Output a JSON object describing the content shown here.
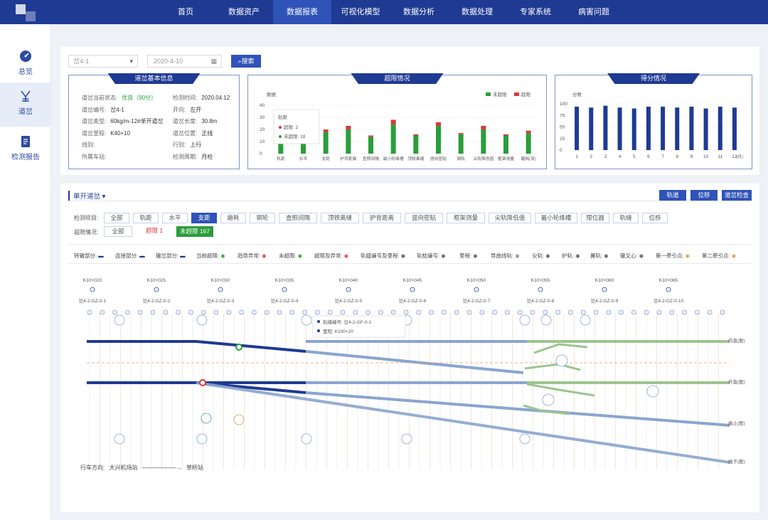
{
  "nav": {
    "items": [
      "首页",
      "数据资产",
      "数据报表",
      "可视化模型",
      "数据分析",
      "数据处理",
      "专家系统",
      "病害问题"
    ],
    "active_index": 2
  },
  "logo_caption": "首页",
  "sidebar": {
    "items": [
      {
        "label": "总览",
        "icon": "dashboard-gauge-icon"
      },
      {
        "label": "道岔",
        "icon": "turnout-icon"
      },
      {
        "label": "检测报告",
        "icon": "report-icon"
      }
    ],
    "active_index": 1
  },
  "filters": {
    "select_value": "岔4-1",
    "date_value": "2020-4-10",
    "search_label": "搜索"
  },
  "basic_info": {
    "title": "道岔基本信息",
    "rows": [
      {
        "k": "道岔当前状态:",
        "v": "优良（90分）"
      },
      {
        "k": "检测时间:",
        "v": "2020.04.12"
      },
      {
        "k": "道岔编号:",
        "v": "岔4-1"
      },
      {
        "k": "开向:",
        "v": "左开"
      },
      {
        "k": "道岔类型:",
        "v": "60kg/m-12#单开道岔"
      },
      {
        "k": "道岔长度:",
        "v": "30.8m"
      },
      {
        "k": "道岔里程:",
        "v": "K40+10"
      },
      {
        "k": "道岔位置:",
        "v": "正线"
      },
      {
        "k": "线别:",
        "v": ""
      },
      {
        "k": "行别:",
        "v": "上行"
      },
      {
        "k": "所属车站:",
        "v": ""
      },
      {
        "k": "检测周期:",
        "v": "月检"
      }
    ]
  },
  "overlimit_chart": {
    "title": "超限情况",
    "ylabel": "数据",
    "legend": [
      "未超限",
      "超限"
    ],
    "colors": {
      "normal": "#2a9d3a",
      "over": "#d83a3a"
    },
    "tooltip": {
      "title": "轨距",
      "over_label": "超限:",
      "over_value": "2",
      "normal_label": "未超限:",
      "normal_value": "18"
    }
  },
  "score_chart": {
    "title": "得分情况",
    "ylabel": "分数",
    "xunit": "(月)",
    "color": "#1f3a93"
  },
  "chart_data": [
    {
      "type": "bar",
      "title": "超限情况",
      "ylabel": "数据",
      "ylim": [
        0,
        40
      ],
      "yticks": [
        0,
        10,
        20,
        30,
        40
      ],
      "categories": [
        "轨距",
        "水平",
        "支距",
        "护背距离",
        "查照间隔",
        "最小轮缘槽",
        "顶铁离缝",
        "竖向密贴",
        "钢轨",
        "尖轨降低值",
        "框架测量",
        "磨耗(误)"
      ],
      "series": [
        {
          "name": "未超限",
          "values": [
            18,
            10,
            18,
            20,
            14,
            24,
            15,
            23,
            16,
            20,
            15,
            17
          ]
        },
        {
          "name": "超限",
          "values": [
            2,
            2,
            2,
            3,
            1,
            4,
            1,
            3,
            1,
            3,
            1,
            2
          ]
        }
      ],
      "legend_position": "top-right"
    },
    {
      "type": "bar",
      "title": "得分情况",
      "ylabel": "分数",
      "ylim": [
        0,
        100
      ],
      "yticks": [
        0,
        25,
        50,
        75,
        100
      ],
      "categories": [
        "1",
        "2",
        "3",
        "4",
        "5",
        "6",
        "7",
        "8",
        "9",
        "10",
        "11",
        "12"
      ],
      "series": [
        {
          "name": "",
          "values": [
            94,
            92,
            96,
            92,
            90,
            94,
            94,
            92,
            94,
            90,
            94,
            92
          ]
        }
      ]
    }
  ],
  "section": {
    "title": "单开道岔",
    "right_buttons": [
      "轨道",
      "位移",
      "道岔检查"
    ],
    "detect_label": "检测项目:",
    "detect_items": [
      "全部",
      "轨距",
      "水平",
      "支距",
      "磨耗",
      "钢轮",
      "查照间隔",
      "顶铁离缝",
      "护背距离",
      "竖向密贴",
      "框架测量",
      "尖轨降低值",
      "最小轮缘槽",
      "限位器",
      "轨缝",
      "位移"
    ],
    "detect_active": 3,
    "status_label": "超限情况:",
    "status_items": [
      "全部",
      "超限 1",
      "未超限 167"
    ]
  },
  "legend": [
    {
      "label": "转辙部分:"
    },
    {
      "label": "连接部分:"
    },
    {
      "label": "辙岔部分:"
    },
    {
      "label": "当前超限:"
    },
    {
      "label": "趋势异常:"
    },
    {
      "label": "未超限:"
    },
    {
      "label": "超限及异常:"
    },
    {
      "label": "轨缝编号及里程:"
    },
    {
      "label": "轨枕编号:"
    },
    {
      "label": "里程:"
    },
    {
      "label": "导曲线轨:"
    },
    {
      "label": "尖轨:"
    },
    {
      "label": "护轨:"
    },
    {
      "label": "翼轨:"
    },
    {
      "label": "辙叉心:"
    },
    {
      "label": "第一牵引点:"
    },
    {
      "label": "第二牵引点:"
    }
  ],
  "diagram": {
    "mileages": [
      "K10+020",
      "K10+025",
      "K10+030",
      "K10+035",
      "K10+040",
      "K10+045",
      "K10+050",
      "K10+055",
      "K10+060",
      "K10+065"
    ],
    "joints": [
      "岔4-2-GZ-0-1",
      "岔4-2-GZ-0-2",
      "岔4-2-GZ-0-3",
      "岔4-2-GZ-0-4",
      "岔4-2-GZ-0-5",
      "岔4-2-GZ-0-6",
      "岔4-2-GZ-0-7",
      "岔4-2-GZ-0-8",
      "岔4-2-GZ-0-9",
      "岔4-2-GZ-0-10"
    ],
    "rail_labels": [
      "内直(股)",
      "外直(股)",
      "曲上(股)",
      "曲下(股)"
    ],
    "popup": {
      "joint_label": "轨缝编号:",
      "joint_value": "岔4-2-GF-0-1",
      "mileage_label": "里程:",
      "mileage_value": "K100+20"
    },
    "direction_label": "行车方向:",
    "from_station": "大兴机场站",
    "to_station": "草桥站"
  }
}
